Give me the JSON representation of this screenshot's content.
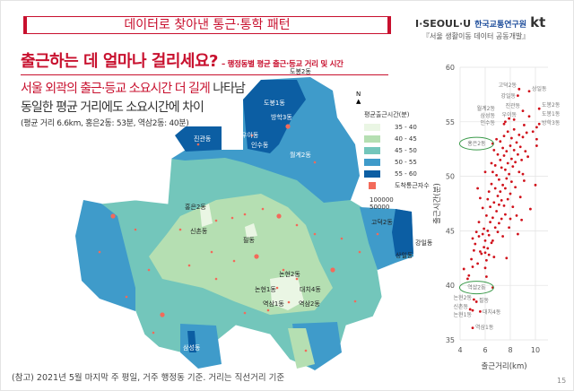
{
  "header": {
    "banner": "데이터로 찾아낸 통근·통학 패턴",
    "logo_iseoulu": "I·SEOUL·U",
    "logo_institute": "한국교통연구원",
    "logo_kt": "kt",
    "logo_sub": "『서울 생활이동 데이터 공동개발』"
  },
  "title": {
    "main": "출근하는 데 얼마나 걸리세요?",
    "sub": "– 행정동별 평균 출근·등교 거리 및 시간"
  },
  "headline": {
    "red": "서울 외곽의 출근·등교 소요시간 더 길게",
    "rest": " 나타남",
    "line2": "동일한 평균 거리에도 소요시간에 차이",
    "line3": "(평균 거리 6.6km, 홍은2동: 53분, 역삼2동: 40분)"
  },
  "map": {
    "compass": "N",
    "legend": {
      "title": "평균출근시간(분)",
      "classes": [
        {
          "label": "35 - 40",
          "color": "#eaf6e4"
        },
        {
          "label": "40 - 45",
          "color": "#b5dfb2"
        },
        {
          "label": "45 - 50",
          "color": "#73c6bb"
        },
        {
          "label": "50 - 55",
          "color": "#3f9bca"
        },
        {
          "label": "55 - 60",
          "color": "#0c5ea3"
        }
      ],
      "arrivals_label": "도착통근자수",
      "arrivals_color": "#f36a5a",
      "size_values": [
        "100000",
        "50000"
      ]
    },
    "labels": [
      "도봉2동",
      "도봉1동",
      "방학3동",
      "우이동",
      "인수동",
      "월계2동",
      "진관동",
      "홍은2동",
      "신촌동",
      "필동",
      "고덕2동",
      "강일동",
      "상일동",
      "논현2동",
      "논현1동",
      "대치4동",
      "역삼1동",
      "역삼2동",
      "삼성동"
    ]
  },
  "chart_data": {
    "type": "scatter",
    "xlabel": "출근거리(km)",
    "ylabel": "출근시간(분)",
    "xlim": [
      4,
      11
    ],
    "ylim": [
      35,
      60
    ],
    "xticks": [
      "4",
      "6",
      "8",
      "10"
    ],
    "yticks": [
      "35",
      "40",
      "45",
      "50",
      "55",
      "60"
    ],
    "grid": true,
    "point_color": "#d0101a",
    "highlighted": [
      "홍은2동",
      "역삼2동"
    ],
    "labeled_points": [
      {
        "name": "고덕2동",
        "x": 8.7,
        "y": 58.0
      },
      {
        "name": "상일동",
        "x": 9.5,
        "y": 57.8
      },
      {
        "name": "강일동",
        "x": 8.6,
        "y": 57.4
      },
      {
        "name": "도봉2동",
        "x": 10.3,
        "y": 56.2
      },
      {
        "name": "진관동",
        "x": 9.0,
        "y": 56.0
      },
      {
        "name": "도봉1동",
        "x": 9.5,
        "y": 55.5
      },
      {
        "name": "월계2동",
        "x": 7.9,
        "y": 55.3
      },
      {
        "name": "삼성동",
        "x": 7.6,
        "y": 55.0
      },
      {
        "name": "우이동",
        "x": 8.3,
        "y": 55.2
      },
      {
        "name": "인수동",
        "x": 7.5,
        "y": 54.8
      },
      {
        "name": "방학3동",
        "x": 9.1,
        "y": 54.7
      },
      {
        "name": "홍은2동",
        "x": 6.6,
        "y": 53.0
      },
      {
        "name": "역삼2동",
        "x": 6.6,
        "y": 39.8
      },
      {
        "name": "논현2동",
        "x": 5.1,
        "y": 38.7
      },
      {
        "name": "필동",
        "x": 5.3,
        "y": 38.5
      },
      {
        "name": "신촌동",
        "x": 4.8,
        "y": 37.8
      },
      {
        "name": "논현1동",
        "x": 5.0,
        "y": 37.7
      },
      {
        "name": "대치4동",
        "x": 5.6,
        "y": 37.6
      },
      {
        "name": "역삼1동",
        "x": 5.0,
        "y": 36.1
      }
    ],
    "points": [
      [
        4.3,
        41.5
      ],
      [
        4.6,
        40.6
      ],
      [
        4.7,
        40.9
      ],
      [
        4.9,
        42.4
      ],
      [
        5.0,
        41.7
      ],
      [
        5.1,
        43.2
      ],
      [
        5.0,
        44.3
      ],
      [
        5.2,
        43.8
      ],
      [
        5.4,
        42.0
      ],
      [
        5.3,
        44.9
      ],
      [
        5.5,
        44.5
      ],
      [
        5.5,
        45.8
      ],
      [
        5.6,
        43.1
      ],
      [
        5.7,
        42.9
      ],
      [
        5.8,
        44.7
      ],
      [
        5.8,
        47.1
      ],
      [
        5.9,
        43.5
      ],
      [
        5.9,
        45.2
      ],
      [
        6.0,
        41.6
      ],
      [
        6.0,
        43.0
      ],
      [
        6.0,
        44.1
      ],
      [
        6.1,
        40.8
      ],
      [
        6.1,
        42.3
      ],
      [
        6.1,
        46.4
      ],
      [
        6.2,
        43.4
      ],
      [
        6.2,
        45.0
      ],
      [
        6.2,
        47.9
      ],
      [
        6.3,
        44.6
      ],
      [
        6.3,
        48.6
      ],
      [
        6.3,
        42.8
      ],
      [
        6.4,
        45.8
      ],
      [
        6.4,
        47.2
      ],
      [
        6.5,
        43.9
      ],
      [
        6.5,
        49.3
      ],
      [
        6.5,
        51.2
      ],
      [
        6.6,
        46.2
      ],
      [
        6.6,
        50.4
      ],
      [
        6.6,
        44.1
      ],
      [
        6.7,
        47.6
      ],
      [
        6.7,
        52.4
      ],
      [
        6.7,
        42.6
      ],
      [
        6.8,
        45.3
      ],
      [
        6.8,
        48.9
      ],
      [
        6.8,
        51.0
      ],
      [
        6.9,
        46.8
      ],
      [
        6.9,
        50.1
      ],
      [
        6.9,
        53.4
      ],
      [
        7.0,
        44.9
      ],
      [
        7.0,
        48.2
      ],
      [
        7.0,
        52.0
      ],
      [
        7.1,
        47.4
      ],
      [
        7.1,
        49.7
      ],
      [
        7.1,
        45.7
      ],
      [
        7.2,
        51.5
      ],
      [
        7.2,
        48.6
      ],
      [
        7.2,
        53.2
      ],
      [
        7.3,
        46.1
      ],
      [
        7.3,
        50.8
      ],
      [
        7.3,
        47.8
      ],
      [
        7.4,
        52.6
      ],
      [
        7.4,
        49.2
      ],
      [
        7.4,
        44.5
      ],
      [
        7.5,
        51.9
      ],
      [
        7.5,
        47.3
      ],
      [
        7.5,
        53.7
      ],
      [
        7.6,
        48.9
      ],
      [
        7.6,
        50.6
      ],
      [
        7.6,
        46.5
      ],
      [
        7.7,
        52.3
      ],
      [
        7.7,
        49.8
      ],
      [
        7.7,
        42.5
      ],
      [
        7.8,
        51.2
      ],
      [
        7.8,
        47.9
      ],
      [
        7.8,
        54.1
      ],
      [
        7.9,
        50.2
      ],
      [
        7.9,
        45.3
      ],
      [
        8.0,
        52.8
      ],
      [
        8.0,
        48.4
      ],
      [
        8.0,
        46.1
      ],
      [
        8.1,
        51.6
      ],
      [
        8.1,
        53.5
      ],
      [
        8.1,
        49.5
      ],
      [
        8.2,
        50.9
      ],
      [
        8.2,
        47.2
      ],
      [
        8.3,
        52.4
      ],
      [
        8.3,
        54.3
      ],
      [
        8.4,
        49.0
      ],
      [
        8.4,
        51.3
      ],
      [
        8.5,
        53.1
      ],
      [
        8.5,
        46.4
      ],
      [
        8.6,
        52.0
      ],
      [
        8.6,
        44.7
      ],
      [
        8.7,
        50.4
      ],
      [
        8.7,
        53.8
      ],
      [
        8.8,
        48.1
      ],
      [
        8.8,
        52.7
      ],
      [
        8.9,
        51.5
      ],
      [
        8.9,
        46.0
      ],
      [
        9.0,
        50.2
      ],
      [
        9.0,
        53.6
      ],
      [
        9.1,
        49.6
      ],
      [
        9.2,
        52.3
      ],
      [
        9.3,
        54.0
      ],
      [
        9.4,
        51.8
      ],
      [
        9.6,
        47.0
      ],
      [
        9.8,
        54.1
      ],
      [
        10.0,
        49.2
      ],
      [
        10.1,
        52.8
      ],
      [
        10.1,
        54.5
      ],
      [
        10.3,
        54.8
      ],
      [
        10.1,
        53.4
      ],
      [
        6.0,
        50.4
      ],
      [
        5.4,
        48.9
      ],
      [
        5.6,
        48.0
      ]
    ]
  },
  "footer": {
    "note": "(참고) 2021년 5월 마지막 주 평일, 거주 행정동 기준. 거리는 직선거리 기준",
    "page": "15"
  }
}
